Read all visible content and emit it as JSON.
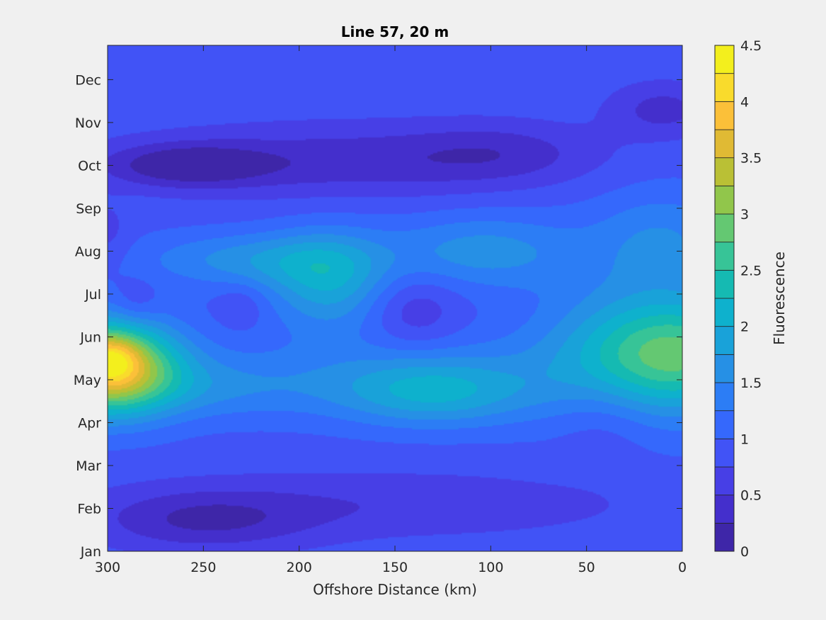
{
  "chart_data": {
    "type": "contourf",
    "title": "Line 57, 20 m",
    "xlabel": "Offshore Distance (km)",
    "colorbar_label": "Fluorescence",
    "x_reversed": true,
    "xlim": [
      300,
      0
    ],
    "x_ticks": [
      "300",
      "250",
      "200",
      "150",
      "100",
      "50",
      "0"
    ],
    "y_ticks": [
      "Jan",
      "Feb",
      "Mar",
      "Apr",
      "May",
      "Jun",
      "Jul",
      "Aug",
      "Sep",
      "Oct",
      "Nov",
      "Dec"
    ],
    "colorbar_ticks": [
      "0",
      "0.5",
      "1",
      "1.5",
      "2",
      "2.5",
      "3",
      "3.5",
      "4",
      "4.5"
    ],
    "clim": [
      0,
      4.5
    ],
    "level_step": 0.25,
    "background_level": 0.9,
    "features": [
      {
        "x": 300,
        "month": 4.3,
        "amplitude": 2.9,
        "sx": 25,
        "sy": 0.75
      },
      {
        "x": 298,
        "month": 4.5,
        "amplitude": 0.7,
        "sx": 10,
        "sy": 0.35
      },
      {
        "x": 2,
        "month": 4.6,
        "amplitude": 1.6,
        "sx": 38,
        "sy": 0.9
      },
      {
        "x": 25,
        "month": 5.0,
        "amplitude": 0.4,
        "sx": 40,
        "sy": 1.6
      },
      {
        "x": 130,
        "month": 3.7,
        "amplitude": 0.9,
        "sx": 35,
        "sy": 0.55
      },
      {
        "x": 185,
        "month": 6.3,
        "amplitude": 1.0,
        "sx": 22,
        "sy": 0.8
      },
      {
        "x": 225,
        "month": 6.8,
        "amplitude": 0.7,
        "sx": 40,
        "sy": 0.45
      },
      {
        "x": 105,
        "month": 7.0,
        "amplitude": 0.7,
        "sx": 35,
        "sy": 0.6
      },
      {
        "x": 150,
        "month": 4.1,
        "amplitude": 0.4,
        "sx": 90,
        "sy": 0.7
      },
      {
        "x": 250,
        "month": 3.8,
        "amplitude": 0.4,
        "sx": 40,
        "sy": 0.5
      },
      {
        "x": 10,
        "month": 7.3,
        "amplitude": 0.5,
        "sx": 25,
        "sy": 0.8
      },
      {
        "x": 260,
        "month": 9.0,
        "amplitude": -0.75,
        "sx": 30,
        "sy": 0.35
      },
      {
        "x": 180,
        "month": 9.1,
        "amplitude": -0.55,
        "sx": 70,
        "sy": 0.6
      },
      {
        "x": 95,
        "month": 9.3,
        "amplitude": -0.4,
        "sx": 35,
        "sy": 0.5
      },
      {
        "x": 250,
        "month": 0.7,
        "amplitude": -0.6,
        "sx": 40,
        "sy": 0.5
      },
      {
        "x": 150,
        "month": 1.1,
        "amplitude": -0.35,
        "sx": 90,
        "sy": 0.55
      },
      {
        "x": 10,
        "month": 10.3,
        "amplitude": -0.5,
        "sx": 20,
        "sy": 0.45
      },
      {
        "x": 140,
        "month": 5.6,
        "amplitude": -0.4,
        "sx": 16,
        "sy": 0.6
      },
      {
        "x": 230,
        "month": 5.7,
        "amplitude": -0.25,
        "sx": 8,
        "sy": 0.35
      },
      {
        "x": 285,
        "month": 5.8,
        "amplitude": -0.25,
        "sx": 8,
        "sy": 0.4
      },
      {
        "x": 300,
        "month": 7.4,
        "amplitude": -0.25,
        "sx": 8,
        "sy": 0.5
      },
      {
        "x": 40,
        "month": 3.2,
        "amplitude": -0.25,
        "sx": 18,
        "sy": 0.8
      }
    ]
  }
}
